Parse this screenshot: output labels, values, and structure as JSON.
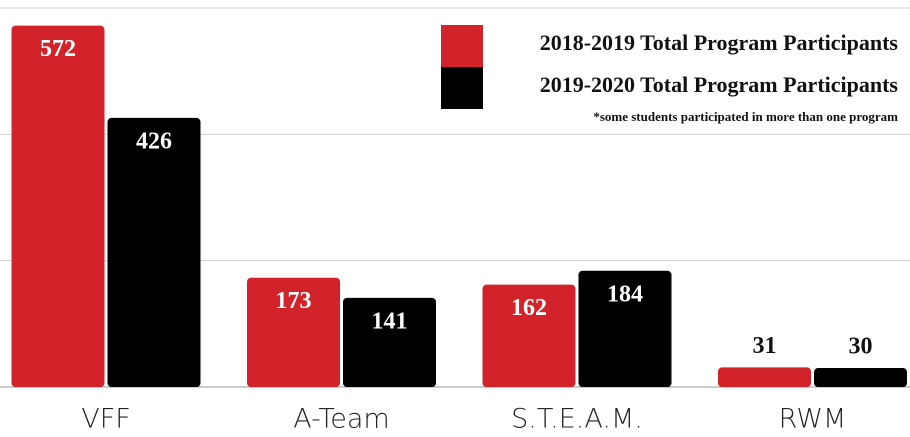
{
  "chart_data": {
    "type": "bar",
    "categories": [
      "VFF",
      "A-Team",
      "S.T.E.A.M.",
      "RWM"
    ],
    "series": [
      {
        "name": "2018-2019 Total Program Participants",
        "color": "#d2232a",
        "values": [
          572,
          173,
          162,
          31
        ]
      },
      {
        "name": "2019-2020 Total Program Participants",
        "color": "#000000",
        "values": [
          426,
          141,
          184,
          30
        ]
      }
    ],
    "annotation": "*some students participated in more than one program",
    "ylim": [
      0,
      600
    ],
    "yticks": [
      0,
      200,
      400,
      600
    ],
    "grid": true,
    "legend": "top-right"
  }
}
